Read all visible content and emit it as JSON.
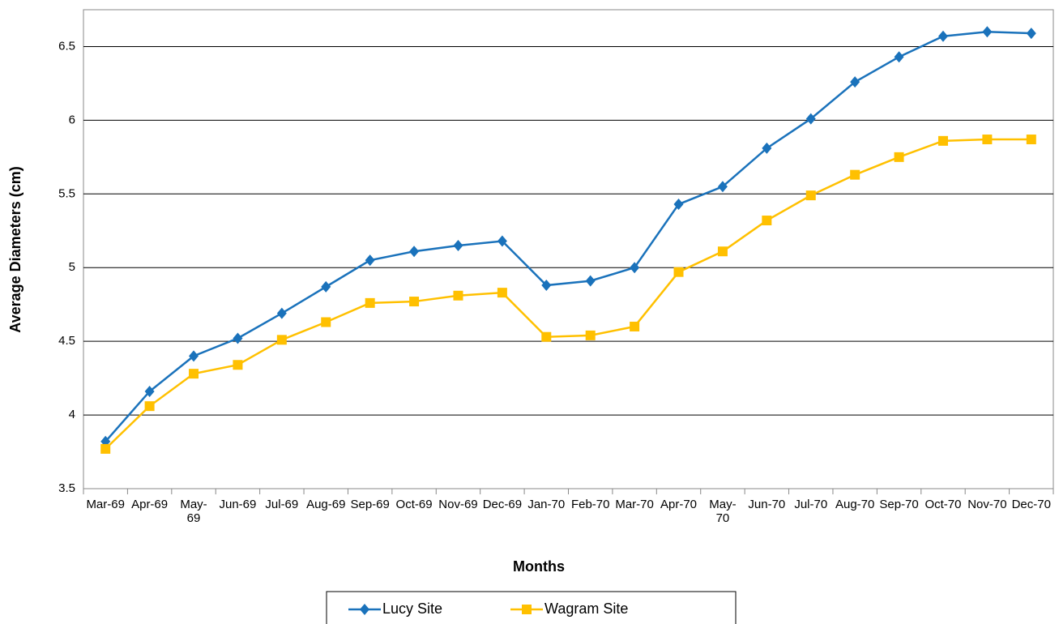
{
  "chart_data": {
    "type": "line",
    "x_label": "Months",
    "y_label": "Average Diameters (cm)",
    "categories": [
      "Mar-69",
      "Apr-69",
      "May-69",
      "Jun-69",
      "Jul-69",
      "Aug-69",
      "Sep-69",
      "Oct-69",
      "Nov-69",
      "Dec-69",
      "Jan-70",
      "Feb-70",
      "Mar-70",
      "Apr-70",
      "May-70",
      "Jun-70",
      "Jul-70",
      "Aug-70",
      "Sep-70",
      "Oct-70",
      "Nov-70",
      "Dec-70"
    ],
    "series": [
      {
        "name": "Lucy Site",
        "color": "#1a72bb",
        "marker": "diamond",
        "values": [
          3.82,
          4.16,
          4.4,
          4.52,
          4.69,
          4.87,
          5.05,
          5.11,
          5.15,
          5.18,
          4.88,
          4.91,
          5.0,
          5.43,
          5.55,
          5.81,
          6.01,
          6.26,
          6.43,
          6.57,
          6.6,
          6.59
        ]
      },
      {
        "name": "Wagram Site",
        "color": "#ffc000",
        "marker": "square",
        "values": [
          3.77,
          4.06,
          4.28,
          4.34,
          4.51,
          4.63,
          4.76,
          4.77,
          4.81,
          4.83,
          4.53,
          4.54,
          4.6,
          4.97,
          5.11,
          5.32,
          5.49,
          5.63,
          5.75,
          5.86,
          5.87,
          5.87
        ]
      }
    ],
    "ylim": [
      3.5,
      6.75
    ],
    "yticks": [
      3.5,
      4,
      4.5,
      5,
      5.5,
      6,
      6.5
    ],
    "grid": true,
    "legend": "bottom"
  }
}
